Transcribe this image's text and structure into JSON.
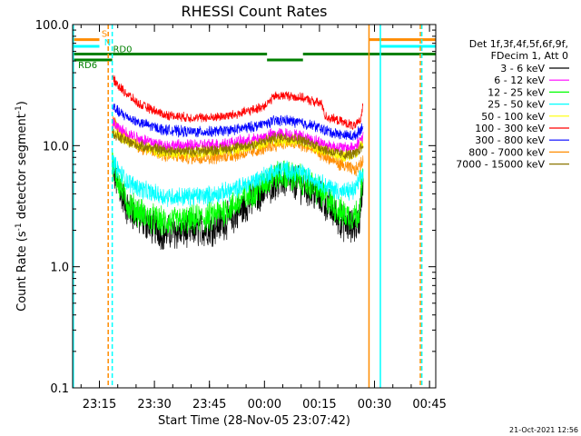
{
  "chart_data": {
    "type": "line",
    "title": "RHESSI Count Rates",
    "xlabel": "Start Time (28-Nov-05 23:07:42)",
    "ylabel_parts": [
      "Count Rate (s",
      "-1",
      " detector segment",
      "-1",
      ")"
    ],
    "yscale": "log",
    "ylim": [
      0.1,
      100.0
    ],
    "xlim_minutes": [
      0,
      99
    ],
    "x_ticks": [
      {
        "label": "23:15",
        "min": 7.3
      },
      {
        "label": "23:30",
        "min": 22.3
      },
      {
        "label": "23:45",
        "min": 37.3
      },
      {
        "label": "00:00",
        "min": 52.3
      },
      {
        "label": "00:15",
        "min": 67.3
      },
      {
        "label": "00:30",
        "min": 82.3
      },
      {
        "label": "00:45",
        "min": 97.3
      }
    ],
    "y_ticks": [
      {
        "label": "0.1",
        "value": 0.1
      },
      {
        "label": "1.0",
        "value": 1.0
      },
      {
        "label": "10.0",
        "value": 10.0
      },
      {
        "label": "100.0",
        "value": 100.0
      }
    ],
    "legend_header": [
      "Det 1f,3f,4f,5f,6f,9f,",
      "FDecim 1, Att 0"
    ],
    "series": [
      {
        "name": "3 - 6 keV",
        "color": "#000000",
        "anchors": [
          [
            10.8,
            6.6
          ],
          [
            12,
            5.0
          ],
          [
            15,
            3.0
          ],
          [
            20,
            2.3
          ],
          [
            25,
            1.9
          ],
          [
            32,
            2.0
          ],
          [
            38,
            2.1
          ],
          [
            44,
            2.6
          ],
          [
            50,
            3.8
          ],
          [
            55,
            5.0
          ],
          [
            58,
            5.2
          ],
          [
            62,
            4.8
          ],
          [
            66,
            4.0
          ],
          [
            70,
            3.1
          ],
          [
            73,
            2.4
          ],
          [
            76,
            2.1
          ],
          [
            78,
            2.3
          ],
          [
            79.2,
            5.0
          ]
        ]
      },
      {
        "name": "6 - 12 keV",
        "color": "#ff00ff",
        "anchors": [
          [
            10.8,
            15.5
          ],
          [
            13,
            13.5
          ],
          [
            18,
            11.5
          ],
          [
            25,
            10.0
          ],
          [
            32,
            10.0
          ],
          [
            38,
            10.2
          ],
          [
            44,
            10.6
          ],
          [
            50,
            11.3
          ],
          [
            55,
            12.5
          ],
          [
            58,
            12.5
          ],
          [
            62,
            12.0
          ],
          [
            66,
            11.0
          ],
          [
            70,
            10.0
          ],
          [
            74,
            9.5
          ],
          [
            77,
            9.8
          ],
          [
            79.2,
            12.0
          ]
        ]
      },
      {
        "name": "12 - 25 keV",
        "color": "#00ff00",
        "anchors": [
          [
            10.8,
            7.1
          ],
          [
            12,
            5.5
          ],
          [
            15,
            3.3
          ],
          [
            20,
            2.6
          ],
          [
            25,
            2.3
          ],
          [
            32,
            2.4
          ],
          [
            38,
            2.6
          ],
          [
            44,
            3.2
          ],
          [
            50,
            4.3
          ],
          [
            55,
            5.6
          ],
          [
            58,
            5.7
          ],
          [
            62,
            5.3
          ],
          [
            66,
            4.5
          ],
          [
            70,
            3.5
          ],
          [
            73,
            2.8
          ],
          [
            76,
            2.6
          ],
          [
            78,
            2.8
          ],
          [
            79.2,
            5.5
          ]
        ]
      },
      {
        "name": "25 - 50 keV",
        "color": "#00ffff",
        "anchors": [
          [
            10.8,
            7.6
          ],
          [
            12,
            6.5
          ],
          [
            15,
            5.0
          ],
          [
            20,
            4.2
          ],
          [
            25,
            3.8
          ],
          [
            32,
            3.8
          ],
          [
            38,
            3.9
          ],
          [
            44,
            4.3
          ],
          [
            50,
            5.2
          ],
          [
            55,
            6.2
          ],
          [
            58,
            6.3
          ],
          [
            62,
            6.0
          ],
          [
            66,
            5.3
          ],
          [
            70,
            4.5
          ],
          [
            74,
            4.1
          ],
          [
            77,
            4.3
          ],
          [
            79.2,
            6.0
          ]
        ]
      },
      {
        "name": "50 - 100 keV",
        "color": "#ffff00",
        "anchors": [
          [
            10.8,
            13.5
          ],
          [
            13,
            12.0
          ],
          [
            18,
            10.0
          ],
          [
            25,
            8.8
          ],
          [
            32,
            8.8
          ],
          [
            38,
            9.0
          ],
          [
            44,
            9.4
          ],
          [
            50,
            10.2
          ],
          [
            55,
            11.3
          ],
          [
            58,
            11.3
          ],
          [
            62,
            10.8
          ],
          [
            66,
            9.8
          ],
          [
            70,
            8.8
          ],
          [
            74,
            8.3
          ],
          [
            77,
            8.5
          ],
          [
            79.2,
            10.5
          ]
        ]
      },
      {
        "name": "100 - 300 keV",
        "color": "#ff0000",
        "anchors": [
          [
            10.8,
            36
          ],
          [
            13,
            30
          ],
          [
            18,
            22
          ],
          [
            25,
            18
          ],
          [
            32,
            17
          ],
          [
            38,
            17
          ],
          [
            44,
            18
          ],
          [
            50,
            20
          ],
          [
            53,
            22
          ],
          [
            55,
            25.5
          ],
          [
            58,
            26
          ],
          [
            62,
            25
          ],
          [
            66,
            23
          ],
          [
            68,
            22
          ],
          [
            68.8,
            17.5
          ],
          [
            70,
            17
          ],
          [
            74,
            15.5
          ],
          [
            77,
            14.5
          ],
          [
            78.5,
            16
          ],
          [
            79.2,
            23
          ]
        ]
      },
      {
        "name": "300 - 800 keV",
        "color": "#0000ff",
        "anchors": [
          [
            10.8,
            21
          ],
          [
            13,
            18.5
          ],
          [
            18,
            15.5
          ],
          [
            25,
            13.5
          ],
          [
            32,
            13
          ],
          [
            38,
            13
          ],
          [
            44,
            13.5
          ],
          [
            50,
            14.5
          ],
          [
            55,
            16
          ],
          [
            58,
            16.2
          ],
          [
            62,
            15.5
          ],
          [
            66,
            14.5
          ],
          [
            70,
            13
          ],
          [
            74,
            12.2
          ],
          [
            77,
            12
          ],
          [
            79.2,
            14.5
          ]
        ]
      },
      {
        "name": "800 - 7000 keV",
        "color": "#ff8c00",
        "anchors": [
          [
            10.8,
            16.5
          ],
          [
            13,
            13
          ],
          [
            18,
            9.8
          ],
          [
            25,
            8.3
          ],
          [
            32,
            8.0
          ],
          [
            38,
            8.0
          ],
          [
            44,
            8.4
          ],
          [
            50,
            9.0
          ],
          [
            55,
            10.2
          ],
          [
            58,
            10.6
          ],
          [
            62,
            10.2
          ],
          [
            66,
            9.2
          ],
          [
            70,
            7.8
          ],
          [
            74,
            6.8
          ],
          [
            77,
            6.2
          ],
          [
            79.2,
            7.5
          ]
        ]
      },
      {
        "name": "7000 - 15000 keV",
        "color": "#8b7500",
        "anchors": [
          [
            10.8,
            13
          ],
          [
            13,
            11.5
          ],
          [
            18,
            10
          ],
          [
            25,
            9.2
          ],
          [
            32,
            9.0
          ],
          [
            38,
            9.2
          ],
          [
            44,
            9.6
          ],
          [
            50,
            10.3
          ],
          [
            55,
            11.6
          ],
          [
            58,
            11.8
          ],
          [
            62,
            11.2
          ],
          [
            66,
            10.2
          ],
          [
            70,
            9.0
          ],
          [
            74,
            8.4
          ],
          [
            77,
            8.5
          ],
          [
            79.2,
            10
          ]
        ]
      }
    ],
    "flag_bars": [
      {
        "label": "S",
        "color": "#ff8c00",
        "value": 75,
        "segments": [
          [
            0,
            7.3
          ],
          [
            80.8,
            99
          ]
        ]
      },
      {
        "label": "N",
        "color": "#00ffff",
        "value": 66,
        "segments": [
          [
            0,
            7.3
          ],
          [
            83.9,
            99
          ]
        ]
      },
      {
        "label": "RD0",
        "color": "#008000",
        "value": 57,
        "segments": [
          [
            0,
            53
          ],
          [
            62.8,
            99
          ]
        ]
      },
      {
        "label": "RD6",
        "color": "#008000",
        "value": 51,
        "segments": [
          [
            0,
            10.8
          ],
          [
            53,
            62.8
          ]
        ]
      }
    ],
    "vlines": [
      {
        "min": 0.2,
        "color": "#00ffff",
        "dash": false
      },
      {
        "min": 9.7,
        "color": "#ff8c00",
        "dash": true
      },
      {
        "min": 10.8,
        "color": "#00ffff",
        "dash": true
      },
      {
        "min": 80.8,
        "color": "#ff8c00",
        "dash": false
      },
      {
        "min": 83.9,
        "color": "#00ffff",
        "dash": false
      },
      {
        "min": 94.8,
        "color": "#ff8c00",
        "dash": true
      },
      {
        "min": 95.2,
        "color": "#00ffff",
        "dash": true
      }
    ],
    "grid": false,
    "legend_position": "right",
    "footer": "21-Oct-2021 12:56"
  }
}
